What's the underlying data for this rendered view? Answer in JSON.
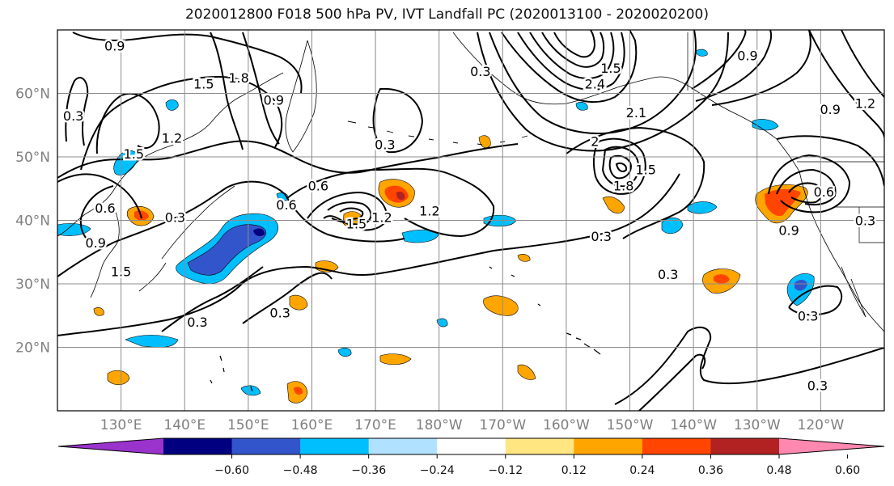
{
  "title": "2020012800 F018 500 hPa PV, IVT Landfall PC (2020013100 - 2020020200)",
  "map": {
    "lon_range": [
      120,
      250
    ],
    "lat_range": [
      10,
      70
    ],
    "lat_ticks": [
      {
        "value": 20,
        "label": "20°N"
      },
      {
        "value": 30,
        "label": "30°N"
      },
      {
        "value": 40,
        "label": "40°N"
      },
      {
        "value": 50,
        "label": "50°N"
      },
      {
        "value": 60,
        "label": "60°N"
      }
    ],
    "lon_ticks": [
      {
        "value": 130,
        "label": "130°E"
      },
      {
        "value": 140,
        "label": "140°E"
      },
      {
        "value": 150,
        "label": "150°E"
      },
      {
        "value": 160,
        "label": "160°E"
      },
      {
        "value": 170,
        "label": "170°E"
      },
      {
        "value": 180,
        "label": "180°W"
      },
      {
        "value": 190,
        "label": "170°W"
      },
      {
        "value": 200,
        "label": "160°W"
      },
      {
        "value": 210,
        "label": "150°W"
      },
      {
        "value": 220,
        "label": "140°W"
      },
      {
        "value": 230,
        "label": "130°W"
      },
      {
        "value": 240,
        "label": "120°W"
      }
    ],
    "contour_labels": [
      {
        "lon": 129.0,
        "lat": 67.5,
        "text": "0.9"
      },
      {
        "lon": 122.5,
        "lat": 56.5,
        "text": "0.3"
      },
      {
        "lon": 143.0,
        "lat": 61.5,
        "text": "1.5"
      },
      {
        "lon": 148.5,
        "lat": 62.5,
        "text": "1.8"
      },
      {
        "lon": 154.0,
        "lat": 59.0,
        "text": "0.9"
      },
      {
        "lon": 138.0,
        "lat": 53.0,
        "text": "1.2"
      },
      {
        "lon": 132.0,
        "lat": 50.5,
        "text": "1.5"
      },
      {
        "lon": 127.5,
        "lat": 42.0,
        "text": "0.6"
      },
      {
        "lon": 138.5,
        "lat": 40.5,
        "text": "0.3"
      },
      {
        "lon": 126.0,
        "lat": 36.5,
        "text": "0.9"
      },
      {
        "lon": 130.0,
        "lat": 32.0,
        "text": "1.5"
      },
      {
        "lon": 161.0,
        "lat": 45.5,
        "text": "0.6"
      },
      {
        "lon": 156.0,
        "lat": 42.5,
        "text": "0.6"
      },
      {
        "lon": 167.0,
        "lat": 39.5,
        "text": "1.5"
      },
      {
        "lon": 171.0,
        "lat": 40.5,
        "text": "1.2"
      },
      {
        "lon": 178.5,
        "lat": 41.5,
        "text": "1.2"
      },
      {
        "lon": 171.5,
        "lat": 52.0,
        "text": "0.3"
      },
      {
        "lon": 186.5,
        "lat": 63.5,
        "text": "0.3"
      },
      {
        "lon": 155.0,
        "lat": 25.5,
        "text": "0.3"
      },
      {
        "lon": 142.0,
        "lat": 24.0,
        "text": "0.3"
      },
      {
        "lon": 204.5,
        "lat": 61.5,
        "text": "2.4"
      },
      {
        "lon": 207.0,
        "lat": 64.0,
        "text": "1.5"
      },
      {
        "lon": 211.0,
        "lat": 57.0,
        "text": "2.1"
      },
      {
        "lon": 204.5,
        "lat": 52.5,
        "text": "2"
      },
      {
        "lon": 209.0,
        "lat": 45.5,
        "text": "1.8"
      },
      {
        "lon": 212.5,
        "lat": 48.0,
        "text": "1.5"
      },
      {
        "lon": 216.0,
        "lat": 31.5,
        "text": "0.3"
      },
      {
        "lon": 205.5,
        "lat": 37.5,
        "text": "0.3"
      },
      {
        "lon": 228.5,
        "lat": 66.0,
        "text": "0.9"
      },
      {
        "lon": 241.5,
        "lat": 57.5,
        "text": "0.9"
      },
      {
        "lon": 247.0,
        "lat": 58.5,
        "text": "1.2"
      },
      {
        "lon": 235.0,
        "lat": 38.5,
        "text": "0.9"
      },
      {
        "lon": 240.5,
        "lat": 44.5,
        "text": "0.6"
      },
      {
        "lon": 247.0,
        "lat": 40.0,
        "text": "0.3"
      },
      {
        "lon": 238.0,
        "lat": 25.0,
        "text": "0.3"
      },
      {
        "lon": 239.5,
        "lat": 14.0,
        "text": "0.3"
      }
    ]
  },
  "colorbar": {
    "colors": [
      "#9933cc",
      "#000080",
      "#3355cc",
      "#00bfff",
      "#b0e2ff",
      "#ffffff",
      "#ffe680",
      "#ffa500",
      "#ff4500",
      "#b22222",
      "#ff88b0"
    ],
    "tick_labels": [
      "−0.60",
      "−0.48",
      "−0.36",
      "−0.24",
      "−0.12",
      "0.12",
      "0.24",
      "0.36",
      "0.48",
      "0.60"
    ]
  }
}
